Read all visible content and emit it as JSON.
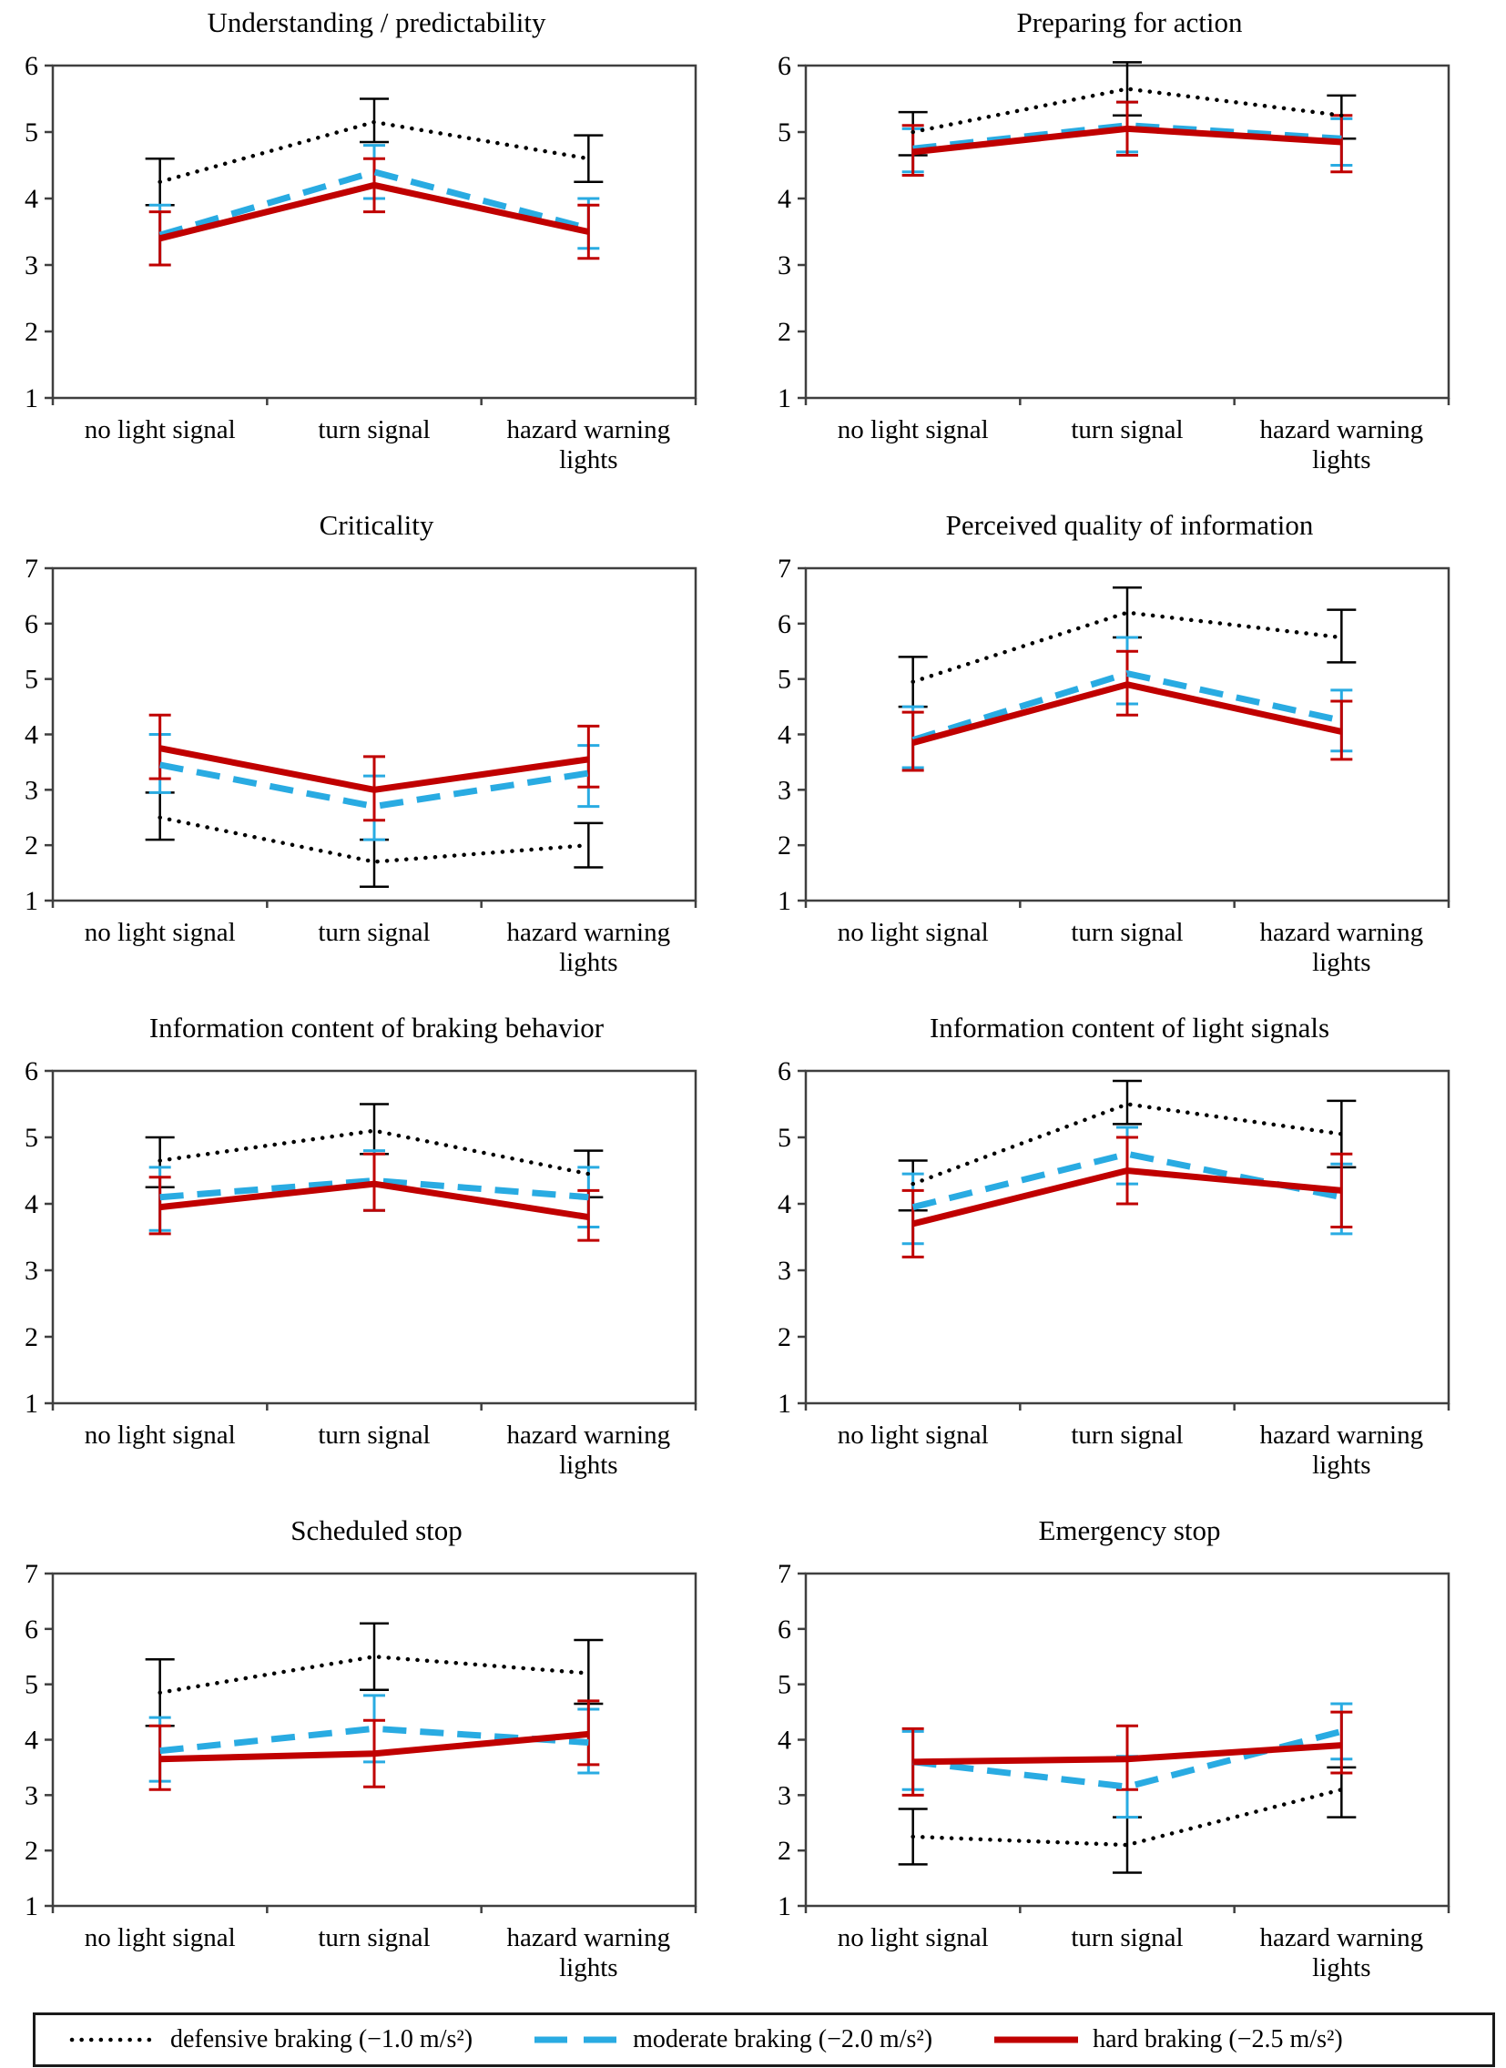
{
  "figure": {
    "description": "Mean ratings with error bars for three braking intensities across three light signal conditions",
    "background": "#ffffff",
    "axis_color": "#3f3f3f"
  },
  "legend": {
    "items": [
      {
        "label": "defensive braking (−1.0 m/s²)",
        "style": "dotted",
        "color": "#000000"
      },
      {
        "label": "moderate braking (−2.0 m/s²)",
        "style": "dashed",
        "color": "#29ABE2"
      },
      {
        "label": "hard braking (−2.5 m/s²)",
        "style": "solid",
        "color": "#C00000"
      }
    ]
  },
  "chart_data": [
    {
      "type": "line",
      "title": "Understanding / predictability",
      "categories": [
        "no light signal",
        "turn signal",
        "hazard warning\nlights"
      ],
      "ylim": [
        1,
        6
      ],
      "yticks": [
        1,
        2,
        3,
        4,
        5,
        6
      ],
      "grid": false,
      "legend_position": "shared-bottom",
      "series": [
        {
          "name": "defensive braking (−1.0 m/s²)",
          "style": "dotted",
          "color": "#000000",
          "values": [
            4.25,
            5.15,
            4.6
          ],
          "err_low": [
            3.9,
            4.85,
            4.25
          ],
          "err_high": [
            4.6,
            5.5,
            4.95
          ]
        },
        {
          "name": "moderate braking (−2.0 m/s²)",
          "style": "dashed",
          "color": "#29ABE2",
          "values": [
            3.45,
            4.4,
            3.55
          ],
          "err_low": [
            3.0,
            4.0,
            3.25
          ],
          "err_high": [
            3.9,
            4.8,
            4.0
          ]
        },
        {
          "name": "hard braking (−2.5 m/s²)",
          "style": "solid",
          "color": "#C00000",
          "values": [
            3.4,
            4.2,
            3.5
          ],
          "err_low": [
            3.0,
            3.8,
            3.1
          ],
          "err_high": [
            3.8,
            4.6,
            3.9
          ]
        }
      ]
    },
    {
      "type": "line",
      "title": "Preparing for action",
      "categories": [
        "no light signal",
        "turn signal",
        "hazard warning\nlights"
      ],
      "ylim": [
        1,
        6
      ],
      "yticks": [
        1,
        2,
        3,
        4,
        5,
        6
      ],
      "grid": false,
      "legend_position": "shared-bottom",
      "series": [
        {
          "name": "defensive braking (−1.0 m/s²)",
          "style": "dotted",
          "color": "#000000",
          "values": [
            5.0,
            5.65,
            5.25
          ],
          "err_low": [
            4.65,
            5.25,
            4.9
          ],
          "err_high": [
            5.3,
            6.05,
            5.55
          ]
        },
        {
          "name": "moderate braking (−2.0 m/s²)",
          "style": "dashed",
          "color": "#29ABE2",
          "values": [
            4.75,
            5.1,
            4.9
          ],
          "err_low": [
            4.4,
            4.7,
            4.5
          ],
          "err_high": [
            5.05,
            5.45,
            5.2
          ]
        },
        {
          "name": "hard braking (−2.5 m/s²)",
          "style": "solid",
          "color": "#C00000",
          "values": [
            4.7,
            5.05,
            4.85
          ],
          "err_low": [
            4.35,
            4.65,
            4.4
          ],
          "err_high": [
            5.1,
            5.45,
            5.25
          ]
        }
      ]
    },
    {
      "type": "line",
      "title": "Criticality",
      "categories": [
        "no light signal",
        "turn signal",
        "hazard warning\nlights"
      ],
      "ylim": [
        1,
        7
      ],
      "yticks": [
        1,
        2,
        3,
        4,
        5,
        6,
        7
      ],
      "grid": false,
      "legend_position": "shared-bottom",
      "series": [
        {
          "name": "defensive braking (−1.0 m/s²)",
          "style": "dotted",
          "color": "#000000",
          "values": [
            2.5,
            1.7,
            2.0
          ],
          "err_low": [
            2.1,
            1.25,
            1.6
          ],
          "err_high": [
            2.95,
            2.1,
            2.4
          ]
        },
        {
          "name": "moderate braking (−2.0 m/s²)",
          "style": "dashed",
          "color": "#29ABE2",
          "values": [
            3.45,
            2.7,
            3.3
          ],
          "err_low": [
            2.95,
            2.1,
            2.7
          ],
          "err_high": [
            4.0,
            3.25,
            3.8
          ]
        },
        {
          "name": "hard braking (−2.5 m/s²)",
          "style": "solid",
          "color": "#C00000",
          "values": [
            3.75,
            3.0,
            3.55
          ],
          "err_low": [
            3.2,
            2.45,
            3.05
          ],
          "err_high": [
            4.35,
            3.6,
            4.15
          ]
        }
      ]
    },
    {
      "type": "line",
      "title": "Perceived quality of information",
      "categories": [
        "no light signal",
        "turn signal",
        "hazard warning\nlights"
      ],
      "ylim": [
        1,
        7
      ],
      "yticks": [
        1,
        2,
        3,
        4,
        5,
        6,
        7
      ],
      "grid": false,
      "legend_position": "shared-bottom",
      "series": [
        {
          "name": "defensive braking (−1.0 m/s²)",
          "style": "dotted",
          "color": "#000000",
          "values": [
            4.95,
            6.2,
            5.75
          ],
          "err_low": [
            4.5,
            5.75,
            5.3
          ],
          "err_high": [
            5.4,
            6.65,
            6.25
          ]
        },
        {
          "name": "moderate braking (−2.0 m/s²)",
          "style": "dashed",
          "color": "#29ABE2",
          "values": [
            3.9,
            5.1,
            4.25
          ],
          "err_low": [
            3.4,
            4.55,
            3.7
          ],
          "err_high": [
            4.5,
            5.75,
            4.8
          ]
        },
        {
          "name": "hard braking (−2.5 m/s²)",
          "style": "solid",
          "color": "#C00000",
          "values": [
            3.85,
            4.9,
            4.05
          ],
          "err_low": [
            3.35,
            4.35,
            3.55
          ],
          "err_high": [
            4.4,
            5.5,
            4.6
          ]
        }
      ]
    },
    {
      "type": "line",
      "title": "Information content of braking behavior",
      "categories": [
        "no light signal",
        "turn signal",
        "hazard warning\nlights"
      ],
      "ylim": [
        1,
        6
      ],
      "yticks": [
        1,
        2,
        3,
        4,
        5,
        6
      ],
      "grid": false,
      "legend_position": "shared-bottom",
      "series": [
        {
          "name": "defensive braking (−1.0 m/s²)",
          "style": "dotted",
          "color": "#000000",
          "values": [
            4.65,
            5.1,
            4.45
          ],
          "err_low": [
            4.25,
            4.75,
            4.1
          ],
          "err_high": [
            5.0,
            5.5,
            4.8
          ]
        },
        {
          "name": "moderate braking (−2.0 m/s²)",
          "style": "dashed",
          "color": "#29ABE2",
          "values": [
            4.1,
            4.35,
            4.1
          ],
          "err_low": [
            3.6,
            3.9,
            3.65
          ],
          "err_high": [
            4.55,
            4.8,
            4.55
          ]
        },
        {
          "name": "hard braking (−2.5 m/s²)",
          "style": "solid",
          "color": "#C00000",
          "values": [
            3.95,
            4.3,
            3.8
          ],
          "err_low": [
            3.55,
            3.9,
            3.45
          ],
          "err_high": [
            4.4,
            4.75,
            4.2
          ]
        }
      ]
    },
    {
      "type": "line",
      "title": "Information content of light signals",
      "categories": [
        "no light signal",
        "turn signal",
        "hazard warning\nlights"
      ],
      "ylim": [
        1,
        6
      ],
      "yticks": [
        1,
        2,
        3,
        4,
        5,
        6
      ],
      "grid": false,
      "legend_position": "shared-bottom",
      "series": [
        {
          "name": "defensive braking (−1.0 m/s²)",
          "style": "dotted",
          "color": "#000000",
          "values": [
            4.3,
            5.5,
            5.05
          ],
          "err_low": [
            3.9,
            5.2,
            4.55
          ],
          "err_high": [
            4.65,
            5.85,
            5.55
          ]
        },
        {
          "name": "moderate braking (−2.0 m/s²)",
          "style": "dashed",
          "color": "#29ABE2",
          "values": [
            3.95,
            4.75,
            4.1
          ],
          "err_low": [
            3.4,
            4.3,
            3.55
          ],
          "err_high": [
            4.45,
            5.15,
            4.6
          ]
        },
        {
          "name": "hard braking (−2.5 m/s²)",
          "style": "solid",
          "color": "#C00000",
          "values": [
            3.7,
            4.5,
            4.2
          ],
          "err_low": [
            3.2,
            4.0,
            3.65
          ],
          "err_high": [
            4.2,
            5.0,
            4.75
          ]
        }
      ]
    },
    {
      "type": "line",
      "title": "Scheduled stop",
      "categories": [
        "no light signal",
        "turn signal",
        "hazard warning\nlights"
      ],
      "ylim": [
        1,
        7
      ],
      "yticks": [
        1,
        2,
        3,
        4,
        5,
        6,
        7
      ],
      "grid": false,
      "legend_position": "shared-bottom",
      "series": [
        {
          "name": "defensive braking (−1.0 m/s²)",
          "style": "dotted",
          "color": "#000000",
          "values": [
            4.85,
            5.5,
            5.2
          ],
          "err_low": [
            4.25,
            4.9,
            4.65
          ],
          "err_high": [
            5.45,
            6.1,
            5.8
          ]
        },
        {
          "name": "moderate braking (−2.0 m/s²)",
          "style": "dashed",
          "color": "#29ABE2",
          "values": [
            3.8,
            4.2,
            3.95
          ],
          "err_low": [
            3.25,
            3.6,
            3.4
          ],
          "err_high": [
            4.4,
            4.8,
            4.55
          ]
        },
        {
          "name": "hard braking (−2.5 m/s²)",
          "style": "solid",
          "color": "#C00000",
          "values": [
            3.65,
            3.75,
            4.1
          ],
          "err_low": [
            3.1,
            3.15,
            3.55
          ],
          "err_high": [
            4.25,
            4.35,
            4.7
          ]
        }
      ]
    },
    {
      "type": "line",
      "title": "Emergency stop",
      "categories": [
        "no light signal",
        "turn signal",
        "hazard warning\nlights"
      ],
      "ylim": [
        1,
        7
      ],
      "yticks": [
        1,
        2,
        3,
        4,
        5,
        6,
        7
      ],
      "grid": false,
      "legend_position": "shared-bottom",
      "series": [
        {
          "name": "defensive braking (−1.0 m/s²)",
          "style": "dotted",
          "color": "#000000",
          "values": [
            2.25,
            2.1,
            3.1
          ],
          "err_low": [
            1.75,
            1.6,
            2.6
          ],
          "err_high": [
            2.75,
            2.6,
            3.5
          ]
        },
        {
          "name": "moderate braking (−2.0 m/s²)",
          "style": "dashed",
          "color": "#29ABE2",
          "values": [
            3.6,
            3.15,
            4.15
          ],
          "err_low": [
            3.1,
            2.6,
            3.65
          ],
          "err_high": [
            4.15,
            3.7,
            4.65
          ]
        },
        {
          "name": "hard braking (−2.5 m/s²)",
          "style": "solid",
          "color": "#C00000",
          "values": [
            3.6,
            3.65,
            3.9
          ],
          "err_low": [
            3.0,
            3.1,
            3.4
          ],
          "err_high": [
            4.2,
            4.25,
            4.5
          ]
        }
      ]
    }
  ]
}
